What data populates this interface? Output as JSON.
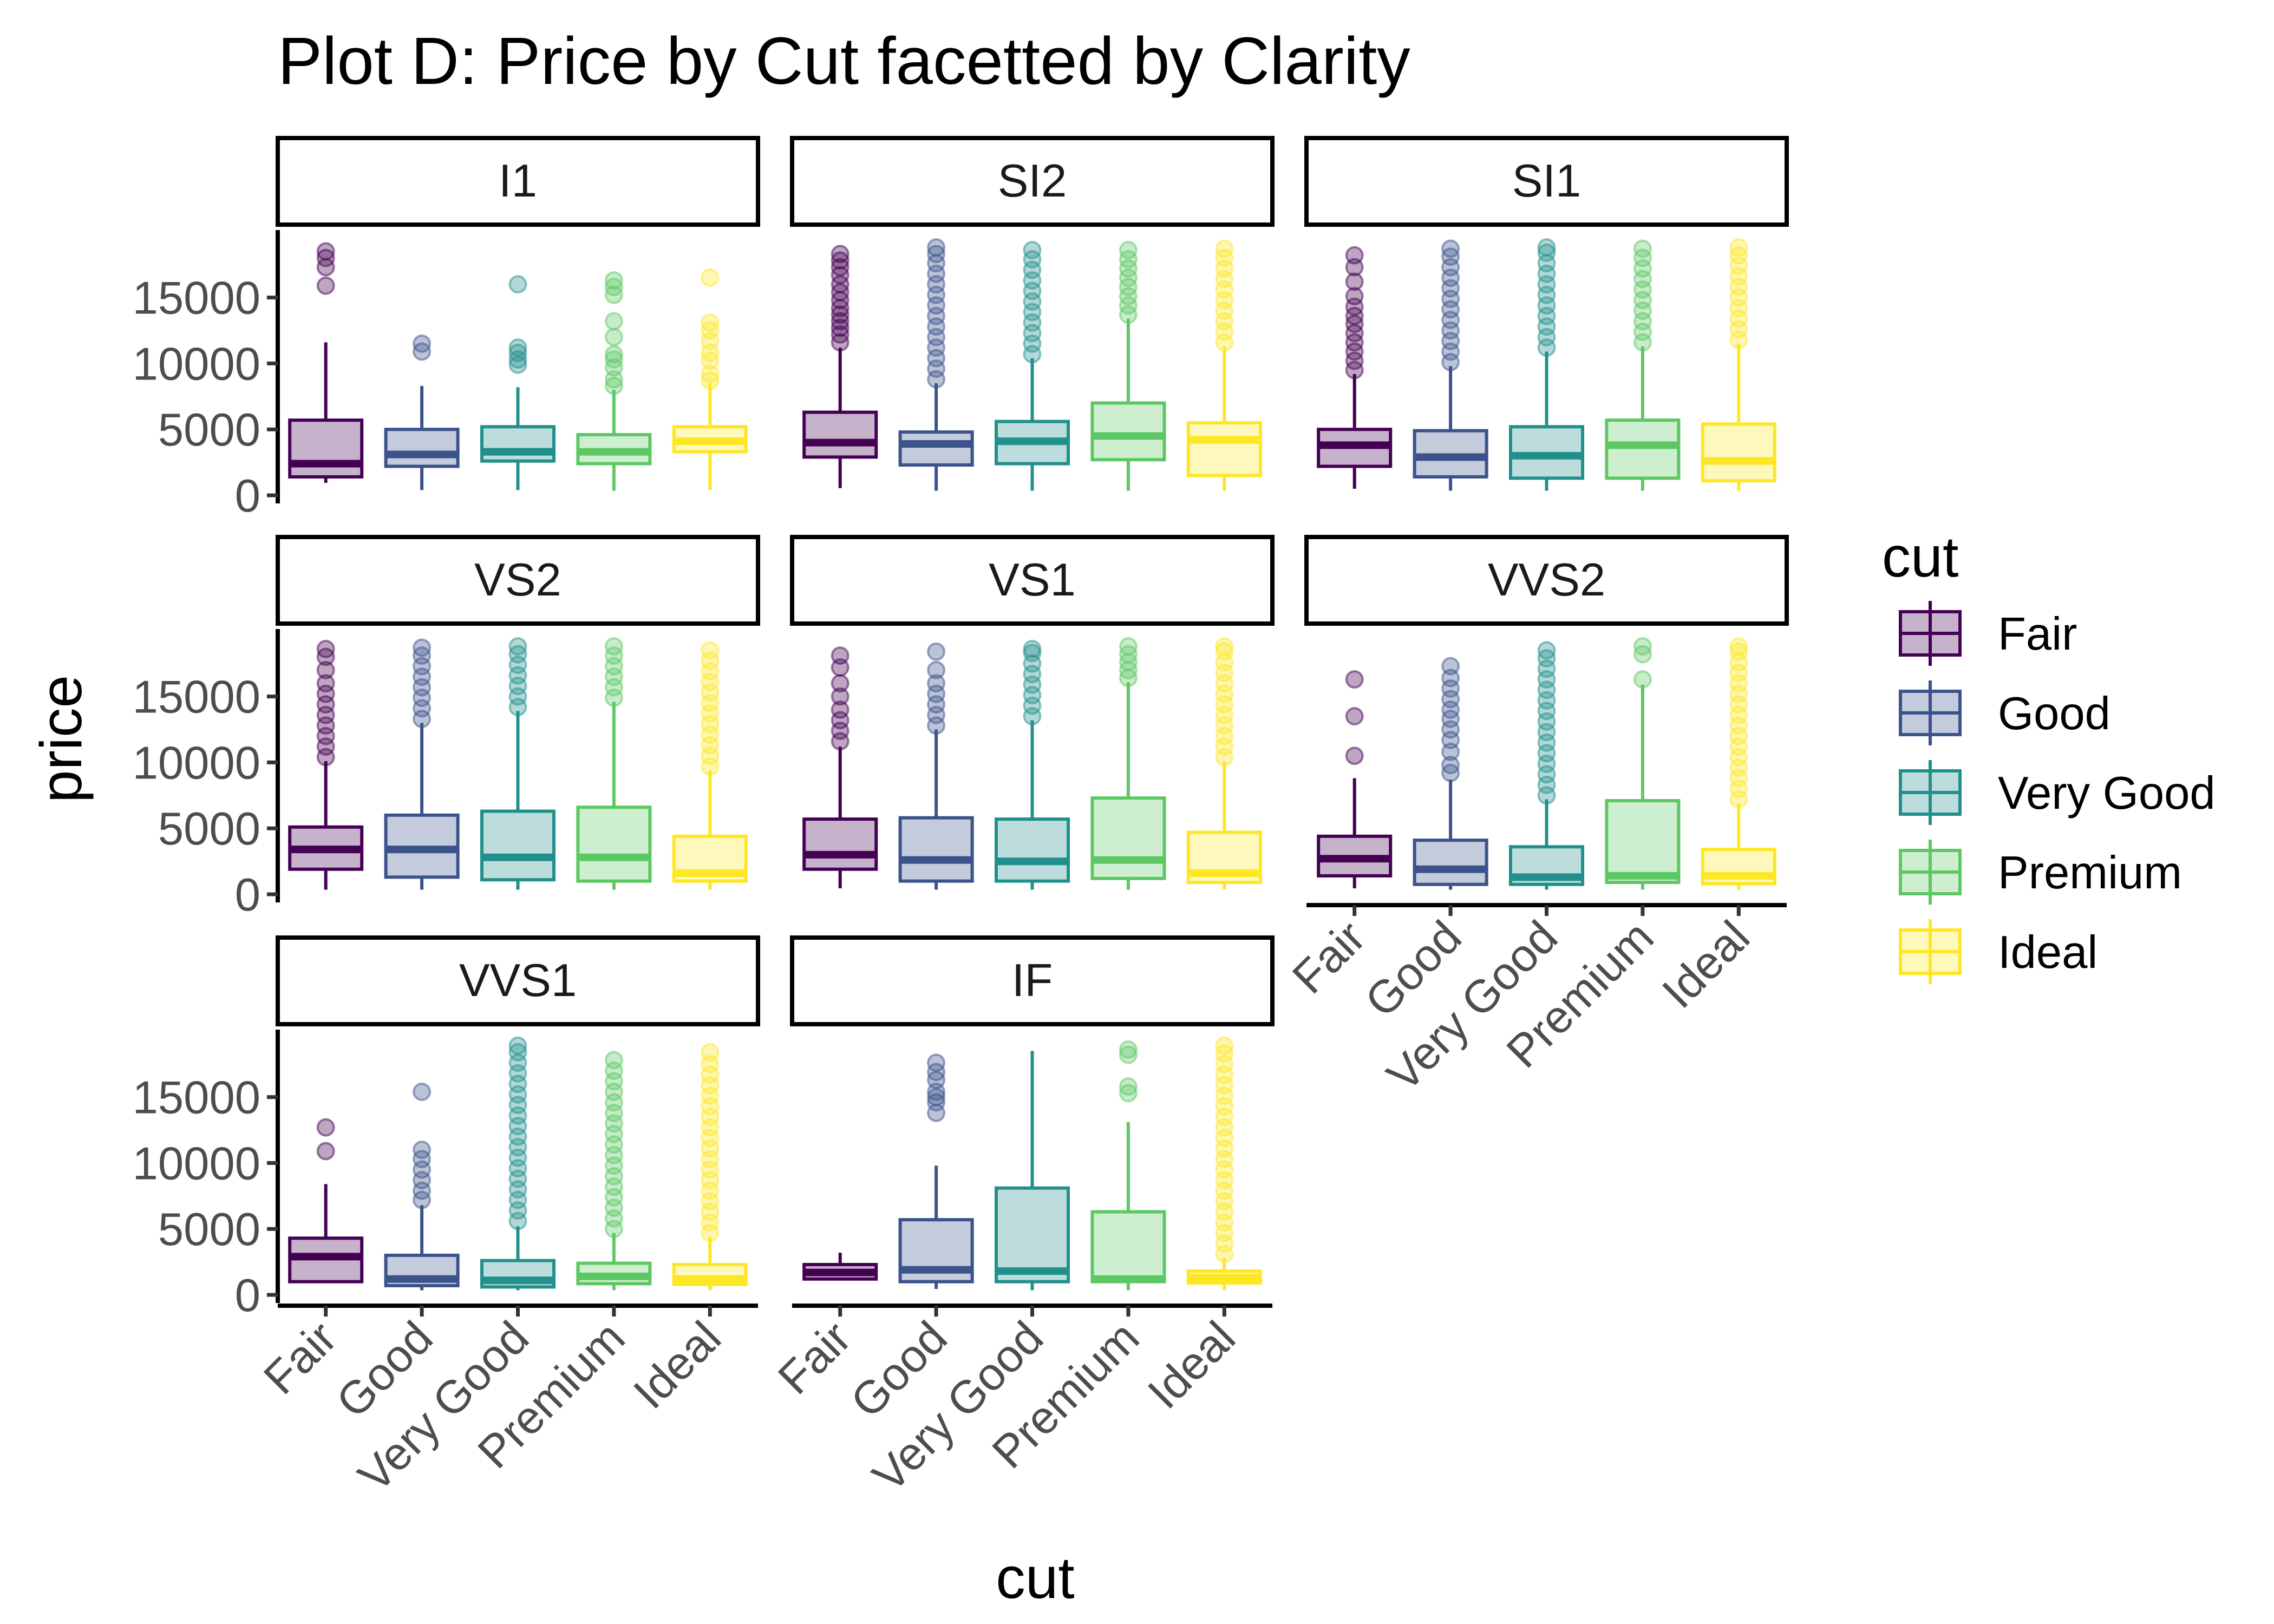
{
  "chart_data": {
    "type": "boxplot",
    "title": "Plot D: Price by Cut facetted by Clarity",
    "xlabel": "cut",
    "ylabel": "price",
    "categories": [
      "Fair",
      "Good",
      "Very Good",
      "Premium",
      "Ideal"
    ],
    "y_ticks": [
      0,
      5000,
      10000,
      15000
    ],
    "y_tick_labels": [
      "0",
      "5000",
      "10000",
      "15000"
    ],
    "ylim": [
      0,
      19500
    ],
    "colors": {
      "Fair": "#440154",
      "Good": "#3B528B",
      "Very Good": "#21908C",
      "Premium": "#5DC863",
      "Ideal": "#FDE725"
    },
    "legend": {
      "title": "cut",
      "position": "right",
      "items": [
        "Fair",
        "Good",
        "Very Good",
        "Premium",
        "Ideal"
      ]
    },
    "facets": [
      {
        "label": "I1",
        "boxes": [
          {
            "cut": "Fair",
            "min": 945,
            "q1": 1400,
            "median": 2400,
            "q3": 5700,
            "max": 11600,
            "outliers": [
              15900,
              17300,
              18000,
              18500
            ]
          },
          {
            "cut": "Good",
            "min": 400,
            "q1": 2200,
            "median": 3100,
            "q3": 5000,
            "max": 8300,
            "outliers": [
              10900,
              11500
            ]
          },
          {
            "cut": "Very Good",
            "min": 400,
            "q1": 2600,
            "median": 3300,
            "q3": 5200,
            "max": 8200,
            "outliers": [
              9900,
              10300,
              10800,
              11200,
              16000
            ]
          },
          {
            "cut": "Premium",
            "min": 350,
            "q1": 2400,
            "median": 3300,
            "q3": 4600,
            "max": 8000,
            "outliers": [
              8300,
              8800,
              9700,
              10300,
              10700,
              12000,
              13200,
              15200,
              15800,
              16300
            ]
          },
          {
            "cut": "Ideal",
            "min": 400,
            "q1": 3300,
            "median": 4100,
            "q3": 5200,
            "max": 8500,
            "outliers": [
              8700,
              9200,
              10200,
              10800,
              11700,
              12500,
              13100,
              16500
            ]
          }
        ]
      },
      {
        "label": "SI2",
        "boxes": [
          {
            "cut": "Fair",
            "min": 550,
            "q1": 2900,
            "median": 4000,
            "q3": 6300,
            "max": 11200,
            "outliers": [
              11600,
              12200,
              12700,
              13200,
              13700,
              14200,
              14800,
              15400,
              16000,
              16700,
              17300,
              17800,
              18300
            ]
          },
          {
            "cut": "Good",
            "min": 350,
            "q1": 2300,
            "median": 3900,
            "q3": 4800,
            "max": 8500,
            "outliers": [
              8800,
              9600,
              10400,
              11200,
              12000,
              12800,
              13600,
              14400,
              15200,
              16000,
              16800,
              17600,
              18300,
              18800
            ]
          },
          {
            "cut": "Very Good",
            "min": 350,
            "q1": 2400,
            "median": 4100,
            "q3": 5600,
            "max": 10400,
            "outliers": [
              10700,
              11500,
              12300,
              13100,
              13900,
              14700,
              15500,
              16300,
              17100,
              17900,
              18600
            ]
          },
          {
            "cut": "Premium",
            "min": 350,
            "q1": 2700,
            "median": 4500,
            "q3": 7000,
            "max": 13400,
            "outliers": [
              13700,
              14400,
              15100,
              15800,
              16500,
              17200,
              17900,
              18600
            ]
          },
          {
            "cut": "Ideal",
            "min": 350,
            "q1": 1500,
            "median": 4200,
            "q3": 5500,
            "max": 11300,
            "outliers": [
              11600,
              12400,
              13200,
              14000,
              14800,
              15600,
              16400,
              17200,
              18000,
              18700
            ]
          }
        ]
      },
      {
        "label": "SI1",
        "boxes": [
          {
            "cut": "Fair",
            "min": 500,
            "q1": 2200,
            "median": 3800,
            "q3": 5000,
            "max": 9200,
            "outliers": [
              9500,
              10200,
              10900,
              11600,
              12300,
              13000,
              13600,
              14300,
              15100,
              16200,
              17300,
              18200
            ]
          },
          {
            "cut": "Good",
            "min": 350,
            "q1": 1400,
            "median": 2900,
            "q3": 4900,
            "max": 9800,
            "outliers": [
              10100,
              10900,
              11700,
              12500,
              13300,
              14100,
              14900,
              15700,
              16500,
              17300,
              18100,
              18700
            ]
          },
          {
            "cut": "Very Good",
            "min": 350,
            "q1": 1300,
            "median": 3000,
            "q3": 5200,
            "max": 10900,
            "outliers": [
              11200,
              12000,
              12800,
              13600,
              14400,
              15200,
              16000,
              16800,
              17600,
              18400,
              18800
            ]
          },
          {
            "cut": "Premium",
            "min": 350,
            "q1": 1300,
            "median": 3800,
            "q3": 5700,
            "max": 11300,
            "outliers": [
              11600,
              12400,
              13200,
              14000,
              14800,
              15600,
              16400,
              17200,
              18000,
              18700
            ]
          },
          {
            "cut": "Ideal",
            "min": 350,
            "q1": 1100,
            "median": 2600,
            "q3": 5400,
            "max": 11500,
            "outliers": [
              11800,
              12600,
              13400,
              14200,
              15000,
              15800,
              16600,
              17400,
              18200,
              18800
            ]
          }
        ]
      },
      {
        "label": "VS2",
        "boxes": [
          {
            "cut": "Fair",
            "min": 350,
            "q1": 1900,
            "median": 3400,
            "q3": 5100,
            "max": 10100,
            "outliers": [
              10400,
              11200,
              12000,
              12800,
              13600,
              14400,
              15200,
              16000,
              17000,
              18000,
              18600
            ]
          },
          {
            "cut": "Good",
            "min": 350,
            "q1": 1300,
            "median": 3400,
            "q3": 6000,
            "max": 13000,
            "outliers": [
              13300,
              14100,
              14900,
              15700,
              16500,
              17300,
              18100,
              18700
            ]
          },
          {
            "cut": "Very Good",
            "min": 350,
            "q1": 1100,
            "median": 2800,
            "q3": 6300,
            "max": 13900,
            "outliers": [
              14200,
              15000,
              15800,
              16600,
              17400,
              18200,
              18800
            ]
          },
          {
            "cut": "Premium",
            "min": 350,
            "q1": 1000,
            "median": 2800,
            "q3": 6600,
            "max": 14600,
            "outliers": [
              14900,
              15700,
              16500,
              17300,
              18100,
              18800
            ]
          },
          {
            "cut": "Ideal",
            "min": 350,
            "q1": 1000,
            "median": 1600,
            "q3": 4400,
            "max": 9400,
            "outliers": [
              9700,
              10500,
              11300,
              12100,
              12900,
              13700,
              14500,
              15300,
              16100,
              16900,
              17700,
              18500
            ]
          }
        ]
      },
      {
        "label": "VS1",
        "boxes": [
          {
            "cut": "Fair",
            "min": 450,
            "q1": 1900,
            "median": 3000,
            "q3": 5700,
            "max": 11200,
            "outliers": [
              11600,
              12400,
              13200,
              14000,
              15000,
              16000,
              17200,
              18100
            ]
          },
          {
            "cut": "Good",
            "min": 350,
            "q1": 1000,
            "median": 2600,
            "q3": 5800,
            "max": 12500,
            "outliers": [
              12800,
              13600,
              14400,
              15200,
              16000,
              17000,
              18400
            ]
          },
          {
            "cut": "Very Good",
            "min": 350,
            "q1": 1000,
            "median": 2500,
            "q3": 5700,
            "max": 13200,
            "outliers": [
              13500,
              14300,
              15100,
              15900,
              16700,
              17500,
              18300,
              18600
            ]
          },
          {
            "cut": "Premium",
            "min": 350,
            "q1": 1200,
            "median": 2600,
            "q3": 7300,
            "max": 16100,
            "outliers": [
              16400,
              17000,
              17600,
              18200,
              18800
            ]
          },
          {
            "cut": "Ideal",
            "min": 350,
            "q1": 900,
            "median": 1600,
            "q3": 4700,
            "max": 10100,
            "outliers": [
              10400,
              11200,
              12000,
              12800,
              13600,
              14400,
              15200,
              16000,
              16800,
              17600,
              18400,
              18800
            ]
          }
        ]
      },
      {
        "label": "VVS2",
        "boxes": [
          {
            "cut": "Fair",
            "min": 450,
            "q1": 1400,
            "median": 2700,
            "q3": 4400,
            "max": 8800,
            "outliers": [
              10500,
              13500,
              16300
            ]
          },
          {
            "cut": "Good",
            "min": 350,
            "q1": 750,
            "median": 1900,
            "q3": 4100,
            "max": 8700,
            "outliers": [
              9200,
              9800,
              10800,
              11700,
              12500,
              13300,
              14000,
              14800,
              15600,
              16400,
              17300
            ]
          },
          {
            "cut": "Very Good",
            "min": 350,
            "q1": 750,
            "median": 1300,
            "q3": 3600,
            "max": 7200,
            "outliers": [
              7500,
              8300,
              9100,
              9900,
              10700,
              11500,
              12300,
              13100,
              13900,
              14700,
              15500,
              16300,
              17100,
              17900,
              18500
            ]
          },
          {
            "cut": "Premium",
            "min": 350,
            "q1": 900,
            "median": 1400,
            "q3": 7100,
            "max": 15900,
            "outliers": [
              16300,
              18200,
              18800
            ]
          },
          {
            "cut": "Ideal",
            "min": 350,
            "q1": 800,
            "median": 1400,
            "q3": 3400,
            "max": 6900,
            "outliers": [
              7200,
              8000,
              8800,
              9600,
              10400,
              11200,
              12000,
              12800,
              13600,
              14400,
              15200,
              16000,
              16800,
              17600,
              18400,
              18800
            ]
          }
        ]
      },
      {
        "label": "VVS1",
        "boxes": [
          {
            "cut": "Fair",
            "min": 950,
            "q1": 1000,
            "median": 2900,
            "q3": 4300,
            "max": 8400,
            "outliers": [
              10900,
              12700
            ]
          },
          {
            "cut": "Good",
            "min": 350,
            "q1": 700,
            "median": 1200,
            "q3": 3000,
            "max": 6800,
            "outliers": [
              7200,
              7900,
              8700,
              9500,
              10300,
              11000,
              15400
            ]
          },
          {
            "cut": "Very Good",
            "min": 350,
            "q1": 600,
            "median": 1100,
            "q3": 2600,
            "max": 5200,
            "outliers": [
              5600,
              6400,
              7200,
              8000,
              8800,
              9600,
              10400,
              11200,
              12000,
              12800,
              13600,
              14400,
              15200,
              16000,
              16800,
              17600,
              18400,
              18900
            ]
          },
          {
            "cut": "Premium",
            "min": 350,
            "q1": 850,
            "median": 1400,
            "q3": 2400,
            "max": 4700,
            "outliers": [
              5000,
              5800,
              6600,
              7400,
              8200,
              9000,
              9800,
              10600,
              11400,
              12200,
              13000,
              13800,
              14600,
              15400,
              16200,
              17000,
              17800
            ]
          },
          {
            "cut": "Ideal",
            "min": 350,
            "q1": 800,
            "median": 1200,
            "q3": 2300,
            "max": 4400,
            "outliers": [
              4700,
              5500,
              6300,
              7100,
              7900,
              8700,
              9500,
              10300,
              11100,
              11900,
              12700,
              13500,
              14300,
              15100,
              15900,
              16700,
              17500,
              18400
            ]
          }
        ]
      },
      {
        "label": "IF",
        "boxes": [
          {
            "cut": "Fair",
            "min": 1100,
            "q1": 1200,
            "median": 1700,
            "q3": 2300,
            "max": 3200,
            "outliers": []
          },
          {
            "cut": "Good",
            "min": 450,
            "q1": 1000,
            "median": 1900,
            "q3": 5700,
            "max": 9800,
            "outliers": [
              13800,
              14600,
              15000,
              15400,
              16300,
              16900,
              17600
            ]
          },
          {
            "cut": "Very Good",
            "min": 350,
            "q1": 1000,
            "median": 1800,
            "q3": 8100,
            "max": 18500,
            "outliers": []
          },
          {
            "cut": "Premium",
            "min": 350,
            "q1": 1000,
            "median": 1200,
            "q3": 6300,
            "max": 13100,
            "outliers": [
              15300,
              15800,
              18200,
              18600
            ]
          },
          {
            "cut": "Ideal",
            "min": 350,
            "q1": 900,
            "median": 1300,
            "q3": 1800,
            "max": 2800,
            "outliers": [
              3100,
              3900,
              4700,
              5500,
              6300,
              7100,
              7900,
              8700,
              9500,
              10300,
              11100,
              11900,
              12700,
              13500,
              14300,
              15100,
              15900,
              16700,
              17500,
              18300,
              18900
            ]
          }
        ]
      }
    ]
  }
}
